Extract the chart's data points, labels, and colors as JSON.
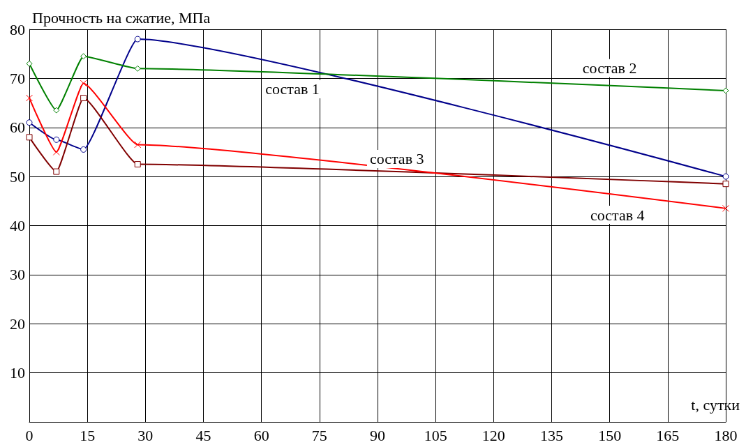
{
  "chart_data": {
    "type": "line",
    "xlabel": "t, сутки",
    "ylabel": "Прочность на сжатие, МПа",
    "x": [
      0,
      7,
      14,
      28,
      180
    ],
    "series": [
      {
        "name": "состав 1",
        "color": "#00008b",
        "marker": "circle",
        "values": [
          61,
          57.5,
          55.5,
          78,
          50
        ]
      },
      {
        "name": "состав 2",
        "color": "#008000",
        "marker": "diamond",
        "values": [
          73,
          63.5,
          74.5,
          72,
          67.5
        ]
      },
      {
        "name": "состав 3",
        "color": "#800000",
        "marker": "square",
        "values": [
          58,
          51,
          66,
          52.5,
          48.5
        ]
      },
      {
        "name": "состав 4",
        "color": "#ff0000",
        "marker": "cross",
        "values": [
          66,
          55,
          69,
          56.5,
          43.5
        ]
      }
    ],
    "xlim": [
      0,
      180
    ],
    "xticks": [
      0,
      15,
      30,
      45,
      60,
      75,
      90,
      105,
      120,
      135,
      150,
      165,
      180
    ],
    "ylim": [
      0,
      80
    ],
    "yticks": [
      10,
      20,
      30,
      40,
      50,
      60,
      70,
      80
    ],
    "grid": true,
    "legend": false
  }
}
